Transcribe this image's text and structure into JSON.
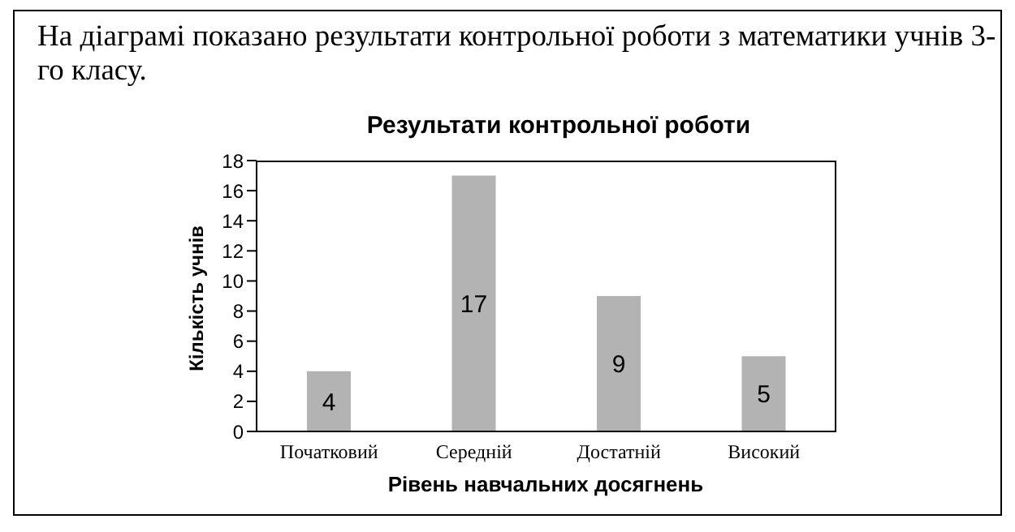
{
  "chart_data": {
    "type": "bar",
    "title": "Результати контрольної роботи",
    "xlabel": "Рівень навчальних досягнень",
    "ylabel": "Кількість учнів",
    "annotations": [
      "На діаграмі показано результати контрольної роботи з математики учнів 3-го класу."
    ],
    "categories": [
      "Початковий",
      "Середній",
      "Достатній",
      "Високий"
    ],
    "values": [
      4,
      17,
      9,
      5
    ],
    "color": "#b3b3b3",
    "data_labels": true,
    "ylim": [
      0,
      18
    ],
    "yticks": [
      0,
      2,
      4,
      6,
      8,
      10,
      12,
      14,
      16,
      18
    ]
  }
}
